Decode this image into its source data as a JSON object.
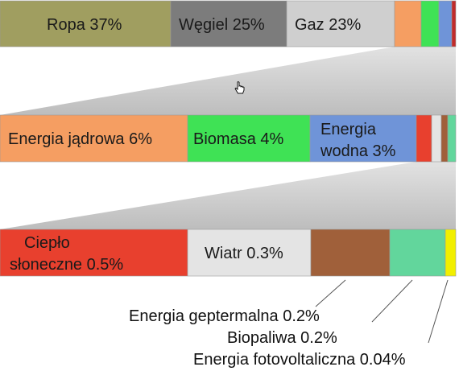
{
  "chart_data": {
    "type": "bar",
    "layout": "nested stacked bars (zoom cascade)",
    "rows": [
      {
        "segments": [
          {
            "label": "Ropa 37%",
            "value": 37,
            "color": "#a09e60"
          },
          {
            "label": "Węgiel 25%",
            "value": 25,
            "color": "#7c7c7c"
          },
          {
            "label": "Gaz 23%",
            "value": 23,
            "color": "#cfcfcf"
          },
          {
            "label": "",
            "value": 6,
            "color": "#f59e62"
          },
          {
            "label": "",
            "value": 4,
            "color": "#3fe255"
          },
          {
            "label": "",
            "value": 3,
            "color": "#6f94d8"
          },
          {
            "label": "",
            "value": 2,
            "color": "#c02b2b"
          }
        ]
      },
      {
        "segments": [
          {
            "label": "Energia jądrowa 6%",
            "value": 6,
            "color": "#f59e62"
          },
          {
            "label": "Biomasa 4%",
            "value": 4,
            "color": "#3fe255"
          },
          {
            "label": "Energia wodna 3%",
            "value": 3,
            "color": "#6f94d8"
          },
          {
            "label": "",
            "value": 0.5,
            "color": "#e8402e"
          },
          {
            "label": "",
            "value": 0.3,
            "color": "#e4e4e4"
          },
          {
            "label": "",
            "value": 0.2,
            "color": "#a0603a"
          },
          {
            "label": "",
            "value": 0.2,
            "color": "#62d69c"
          }
        ]
      },
      {
        "segments": [
          {
            "label": "Ciepło słoneczne 0.5%",
            "value": 0.5,
            "color": "#e8402e"
          },
          {
            "label": "Wiatr 0.3%",
            "value": 0.3,
            "color": "#e4e4e4"
          },
          {
            "label": "",
            "value": 0.2,
            "color": "#a0603a"
          },
          {
            "label": "",
            "value": 0.2,
            "color": "#62d69c"
          },
          {
            "label": "",
            "value": 0.04,
            "color": "#f2ef00"
          }
        ]
      }
    ],
    "annotations": [
      {
        "label": "Energia geptermalna 0.2%",
        "value": 0.2
      },
      {
        "label": "Biopaliwa 0.2%",
        "value": 0.2
      },
      {
        "label": "Energia fotovoltaliczna 0.04%",
        "value": 0.04
      }
    ]
  }
}
